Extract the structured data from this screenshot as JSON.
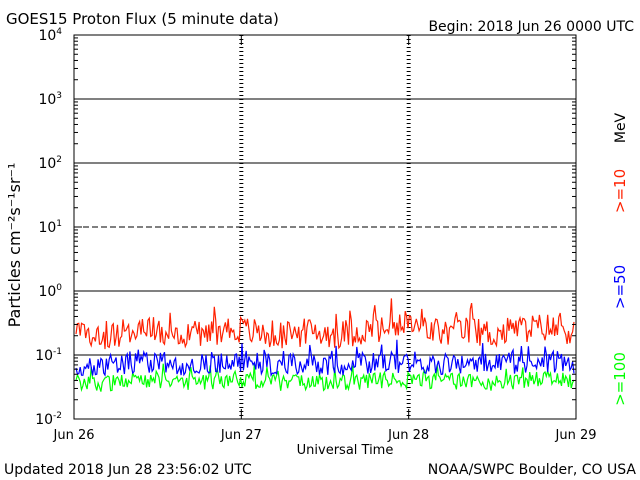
{
  "header": {
    "title": "GOES15 Proton Flux (5 minute data)",
    "begin": "Begin: 2018 Jun 26 0000 UTC"
  },
  "footer": {
    "updated": "Updated 2018 Jun 28 23:56:02 UTC",
    "source": "NOAA/SWPC Boulder, CO USA"
  },
  "chart_data": {
    "type": "line",
    "title": "GOES15 Proton Flux (5 minute data)",
    "xlabel": "Universal Time",
    "ylabel": "Particles cm⁻²s⁻¹sr⁻¹",
    "y_scale": "log",
    "ylim": [
      0.01,
      10000
    ],
    "x_ticks": [
      "Jun 26",
      "Jun 27",
      "Jun 28",
      "Jun 29"
    ],
    "y_ticks": [
      {
        "base": "10",
        "exp": "-2"
      },
      {
        "base": "10",
        "exp": "-1"
      },
      {
        "base": "10",
        "exp": "0"
      },
      {
        "base": "10",
        "exp": "1"
      },
      {
        "base": "10",
        "exp": "2"
      },
      {
        "base": "10",
        "exp": "3"
      },
      {
        "base": "10",
        "exp": "4"
      }
    ],
    "energy_unit": "MeV",
    "series": [
      {
        "name": ">=10",
        "color": "#ff2000",
        "values": [
          0.22,
          0.2,
          0.24,
          0.25,
          0.21,
          0.23,
          0.26,
          0.22,
          0.2,
          0.23,
          0.21,
          0.24,
          0.25,
          0.27,
          0.22,
          0.24,
          0.21,
          0.26,
          0.27,
          0.24
        ]
      },
      {
        "name": ">=50",
        "color": "#0000ff",
        "values": [
          0.072,
          0.068,
          0.075,
          0.078,
          0.071,
          0.074,
          0.079,
          0.073,
          0.07,
          0.072,
          0.069,
          0.074,
          0.076,
          0.078,
          0.072,
          0.074,
          0.071,
          0.077,
          0.078,
          0.075
        ]
      },
      {
        "name": ">=100",
        "color": "#00ff00",
        "values": [
          0.038,
          0.036,
          0.039,
          0.04,
          0.037,
          0.038,
          0.041,
          0.038,
          0.036,
          0.038,
          0.037,
          0.039,
          0.04,
          0.041,
          0.038,
          0.039,
          0.037,
          0.04,
          0.041,
          0.039
        ]
      }
    ]
  }
}
